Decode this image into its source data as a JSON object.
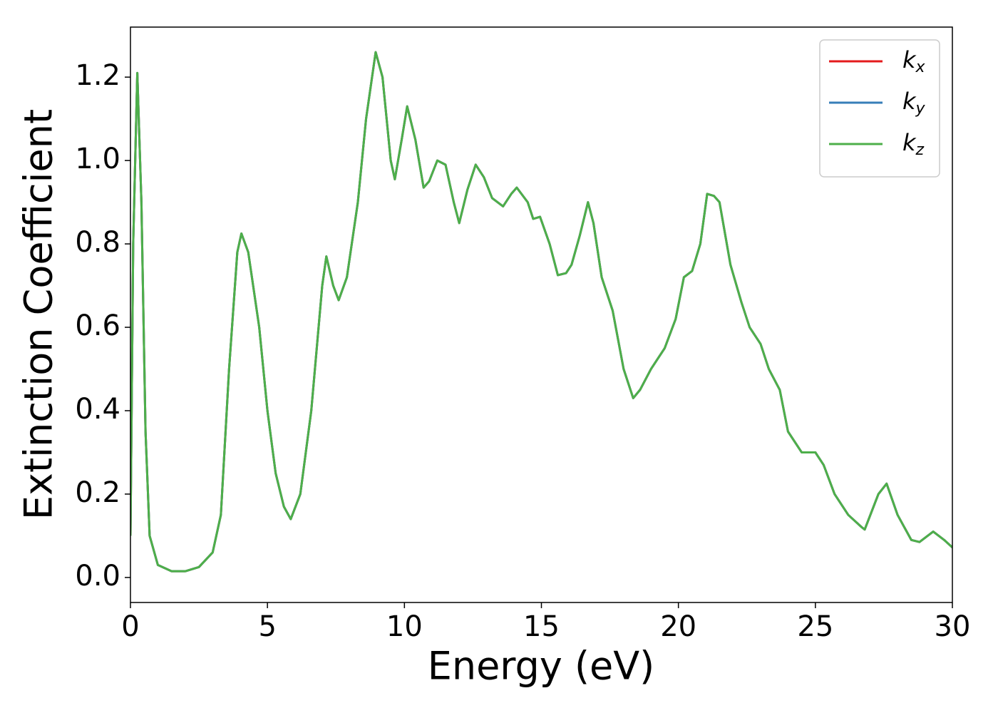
{
  "chart_data": {
    "type": "line",
    "x_label": "Energy (eV)",
    "y_label": "Extinction Coefficient",
    "x": [
      0,
      0.1,
      0.25,
      0.4,
      0.55,
      0.7,
      1.0,
      1.5,
      2.0,
      2.5,
      3.0,
      3.3,
      3.6,
      3.9,
      4.05,
      4.3,
      4.7,
      5.0,
      5.3,
      5.6,
      5.85,
      6.2,
      6.6,
      7.0,
      7.15,
      7.4,
      7.6,
      7.9,
      8.3,
      8.6,
      8.95,
      9.2,
      9.5,
      9.65,
      9.9,
      10.1,
      10.4,
      10.7,
      10.9,
      11.2,
      11.5,
      11.8,
      12.0,
      12.3,
      12.6,
      12.9,
      13.2,
      13.6,
      13.9,
      14.1,
      14.5,
      14.7,
      14.95,
      15.3,
      15.6,
      15.9,
      16.1,
      16.4,
      16.7,
      16.9,
      17.2,
      17.6,
      18.0,
      18.35,
      18.6,
      19.0,
      19.5,
      19.9,
      20.2,
      20.5,
      20.8,
      21.05,
      21.3,
      21.5,
      21.9,
      22.3,
      22.6,
      23.0,
      23.3,
      23.7,
      24.0,
      24.5,
      25.0,
      25.3,
      25.7,
      26.2,
      26.7,
      26.8,
      27.3,
      27.6,
      28.0,
      28.5,
      28.8,
      29.3,
      29.7,
      30
    ],
    "series": [
      {
        "name": "kx",
        "color": "#e41a1c",
        "values": [
          0.1,
          0.8,
          1.21,
          0.9,
          0.35,
          0.1,
          0.03,
          0.015,
          0.015,
          0.025,
          0.06,
          0.15,
          0.5,
          0.78,
          0.825,
          0.78,
          0.6,
          0.4,
          0.25,
          0.17,
          0.14,
          0.2,
          0.4,
          0.7,
          0.77,
          0.7,
          0.665,
          0.72,
          0.9,
          1.1,
          1.26,
          1.2,
          1.0,
          0.955,
          1.05,
          1.13,
          1.05,
          0.935,
          0.95,
          1.0,
          0.99,
          0.9,
          0.85,
          0.93,
          0.99,
          0.96,
          0.91,
          0.89,
          0.92,
          0.935,
          0.9,
          0.86,
          0.865,
          0.8,
          0.725,
          0.73,
          0.75,
          0.82,
          0.9,
          0.85,
          0.72,
          0.64,
          0.5,
          0.43,
          0.45,
          0.5,
          0.55,
          0.62,
          0.72,
          0.735,
          0.8,
          0.92,
          0.915,
          0.9,
          0.75,
          0.66,
          0.6,
          0.56,
          0.5,
          0.45,
          0.35,
          0.3,
          0.3,
          0.27,
          0.2,
          0.15,
          0.12,
          0.115,
          0.2,
          0.225,
          0.15,
          0.09,
          0.085,
          0.11,
          0.09,
          0.072
        ]
      },
      {
        "name": "ky",
        "color": "#377eb8",
        "values": [
          0.1,
          0.8,
          1.21,
          0.9,
          0.35,
          0.1,
          0.03,
          0.015,
          0.015,
          0.025,
          0.06,
          0.15,
          0.5,
          0.78,
          0.825,
          0.78,
          0.6,
          0.4,
          0.25,
          0.17,
          0.14,
          0.2,
          0.4,
          0.7,
          0.77,
          0.7,
          0.665,
          0.72,
          0.9,
          1.1,
          1.26,
          1.2,
          1.0,
          0.955,
          1.05,
          1.13,
          1.05,
          0.935,
          0.95,
          1.0,
          0.99,
          0.9,
          0.85,
          0.93,
          0.99,
          0.96,
          0.91,
          0.89,
          0.92,
          0.935,
          0.9,
          0.86,
          0.865,
          0.8,
          0.725,
          0.73,
          0.75,
          0.82,
          0.9,
          0.85,
          0.72,
          0.64,
          0.5,
          0.43,
          0.45,
          0.5,
          0.55,
          0.62,
          0.72,
          0.735,
          0.8,
          0.92,
          0.915,
          0.9,
          0.75,
          0.66,
          0.6,
          0.56,
          0.5,
          0.45,
          0.35,
          0.3,
          0.3,
          0.27,
          0.2,
          0.15,
          0.12,
          0.115,
          0.2,
          0.225,
          0.15,
          0.09,
          0.085,
          0.11,
          0.09,
          0.072
        ]
      },
      {
        "name": "kz",
        "color": "#4daf4a",
        "values": [
          0.1,
          0.8,
          1.21,
          0.9,
          0.35,
          0.1,
          0.03,
          0.015,
          0.015,
          0.025,
          0.06,
          0.15,
          0.5,
          0.78,
          0.825,
          0.78,
          0.6,
          0.4,
          0.25,
          0.17,
          0.14,
          0.2,
          0.4,
          0.7,
          0.77,
          0.7,
          0.665,
          0.72,
          0.9,
          1.1,
          1.26,
          1.2,
          1.0,
          0.955,
          1.05,
          1.13,
          1.05,
          0.935,
          0.95,
          1.0,
          0.99,
          0.9,
          0.85,
          0.93,
          0.99,
          0.96,
          0.91,
          0.89,
          0.92,
          0.935,
          0.9,
          0.86,
          0.865,
          0.8,
          0.725,
          0.73,
          0.75,
          0.82,
          0.9,
          0.85,
          0.72,
          0.64,
          0.5,
          0.43,
          0.45,
          0.5,
          0.55,
          0.62,
          0.72,
          0.735,
          0.8,
          0.92,
          0.915,
          0.9,
          0.75,
          0.66,
          0.6,
          0.56,
          0.5,
          0.45,
          0.35,
          0.3,
          0.3,
          0.27,
          0.2,
          0.15,
          0.12,
          0.115,
          0.2,
          0.225,
          0.15,
          0.09,
          0.085,
          0.11,
          0.09,
          0.072
        ]
      }
    ],
    "xlim": [
      0,
      30
    ],
    "xticks": [
      0,
      5,
      10,
      15,
      20,
      25,
      30
    ],
    "ylim": [
      -0.06,
      1.32
    ],
    "yticks": [
      {
        "value": 0,
        "label": "0.0"
      },
      0.2,
      0.4,
      0.6,
      0.8,
      {
        "value": 1,
        "label": "1.0"
      },
      1.2
    ],
    "legend": "upper right",
    "grid": false
  }
}
